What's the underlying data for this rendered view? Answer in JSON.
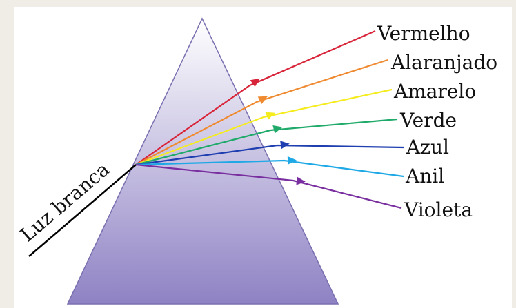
{
  "diagram": {
    "incident_label": "Luz branca",
    "colors": [
      {
        "name": "Vermelho",
        "hex": "#d8253a"
      },
      {
        "name": "Alaranjado",
        "hex": "#f08a30"
      },
      {
        "name": "Amarelo",
        "hex": "#f5ec1e"
      },
      {
        "name": "Verde",
        "hex": "#1faa6a"
      },
      {
        "name": "Azul",
        "hex": "#1f3fb0"
      },
      {
        "name": "Anil",
        "hex": "#1ea9e6"
      },
      {
        "name": "Violeta",
        "hex": "#7a2fa0"
      }
    ],
    "background": "#efede6",
    "panel": "#ffffff",
    "prism_top": "#ffffff",
    "prism_bottom": "#8f82c4",
    "incident_ray_color": "#000000"
  }
}
